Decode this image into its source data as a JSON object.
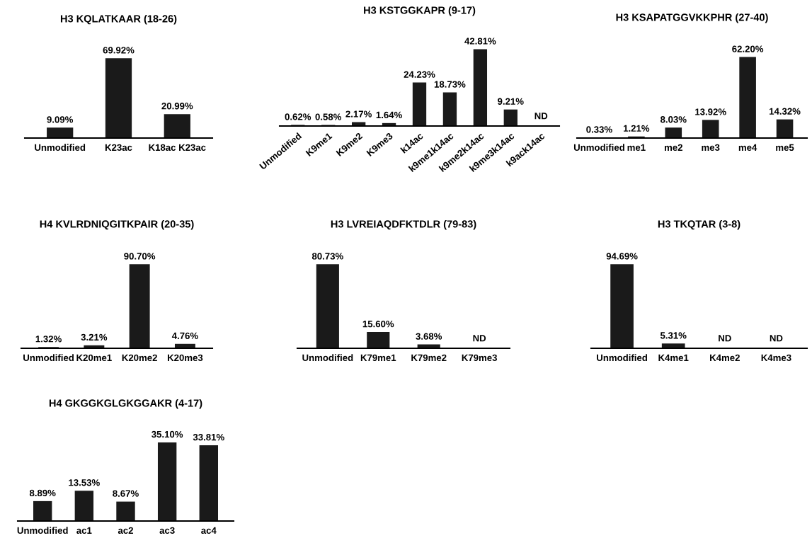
{
  "chart_data": [
    {
      "type": "bar",
      "title": "H3 KQLATKAAR (18-26)",
      "categories": [
        "Unmodified",
        "K23ac",
        "K18ac K23ac"
      ],
      "color": "#1a1a1a",
      "values": [
        9.09,
        69.92,
        20.99
      ],
      "value_labels": [
        "9.09%",
        "69.92%",
        "20.99%"
      ]
    },
    {
      "type": "bar",
      "title": "H3 KSTGGKAPR (9-17)",
      "categories": [
        "Unmodified",
        "K9me1",
        "K9me2",
        "K9me3",
        "k14ac",
        "k9me1k14ac",
        "k9me2k14ac",
        "k9me3k14ac",
        "k9ack14ac"
      ],
      "color": "#1a1a1a",
      "values": [
        0.62,
        0.58,
        2.17,
        1.64,
        24.23,
        18.73,
        42.81,
        9.21,
        null
      ],
      "value_labels": [
        "0.62%",
        "0.58%",
        "2.17%",
        "1.64%",
        "24.23%",
        "18.73%",
        "42.81%",
        "9.21%",
        "ND"
      ]
    },
    {
      "type": "bar",
      "title": "H3 KSAPATGGVKKPHR (27-40)",
      "categories": [
        "Unmodified",
        "me1",
        "me2",
        "me3",
        "me4",
        "me5"
      ],
      "color": "#1a1a1a",
      "values": [
        0.33,
        1.21,
        8.03,
        13.92,
        62.2,
        14.32
      ],
      "value_labels": [
        "0.33%",
        "1.21%",
        "8.03%",
        "13.92%",
        "62.20%",
        "14.32%"
      ]
    },
    {
      "type": "bar",
      "title": "H4 KVLRDNIQGITKPAIR (20-35)",
      "categories": [
        "Unmodified",
        "K20me1",
        "K20me2",
        "K20me3"
      ],
      "color": "#1a1a1a",
      "values": [
        1.32,
        3.21,
        90.7,
        4.76
      ],
      "value_labels": [
        "1.32%",
        "3.21%",
        "90.70%",
        "4.76%"
      ]
    },
    {
      "type": "bar",
      "title": "H3 LVREIAQDFKTDLR (79-83)",
      "categories": [
        "Unmodified",
        "K79me1",
        "K79me2",
        "K79me3"
      ],
      "color": "#1a1a1a",
      "values": [
        80.73,
        15.6,
        3.68,
        null
      ],
      "value_labels": [
        "80.73%",
        "15.60%",
        "3.68%",
        "ND"
      ]
    },
    {
      "type": "bar",
      "title": "H3 TKQTAR (3-8)",
      "categories": [
        "Unmodified",
        "K4me1",
        "K4me2",
        "K4me3"
      ],
      "color": "#1a1a1a",
      "values": [
        94.69,
        5.31,
        null,
        null
      ],
      "value_labels": [
        "94.69%",
        "5.31%",
        "ND",
        "ND"
      ]
    },
    {
      "type": "bar",
      "title": "H4 GKGGKGLGKGGAKR (4-17)",
      "categories": [
        "Unmodified",
        "ac1",
        "ac2",
        "ac3",
        "ac4"
      ],
      "color": "#1a1a1a",
      "values": [
        8.89,
        13.53,
        8.67,
        35.1,
        33.81
      ],
      "value_labels": [
        "8.89%",
        "13.53%",
        "8.67%",
        "35.10%",
        "33.81%"
      ]
    }
  ]
}
